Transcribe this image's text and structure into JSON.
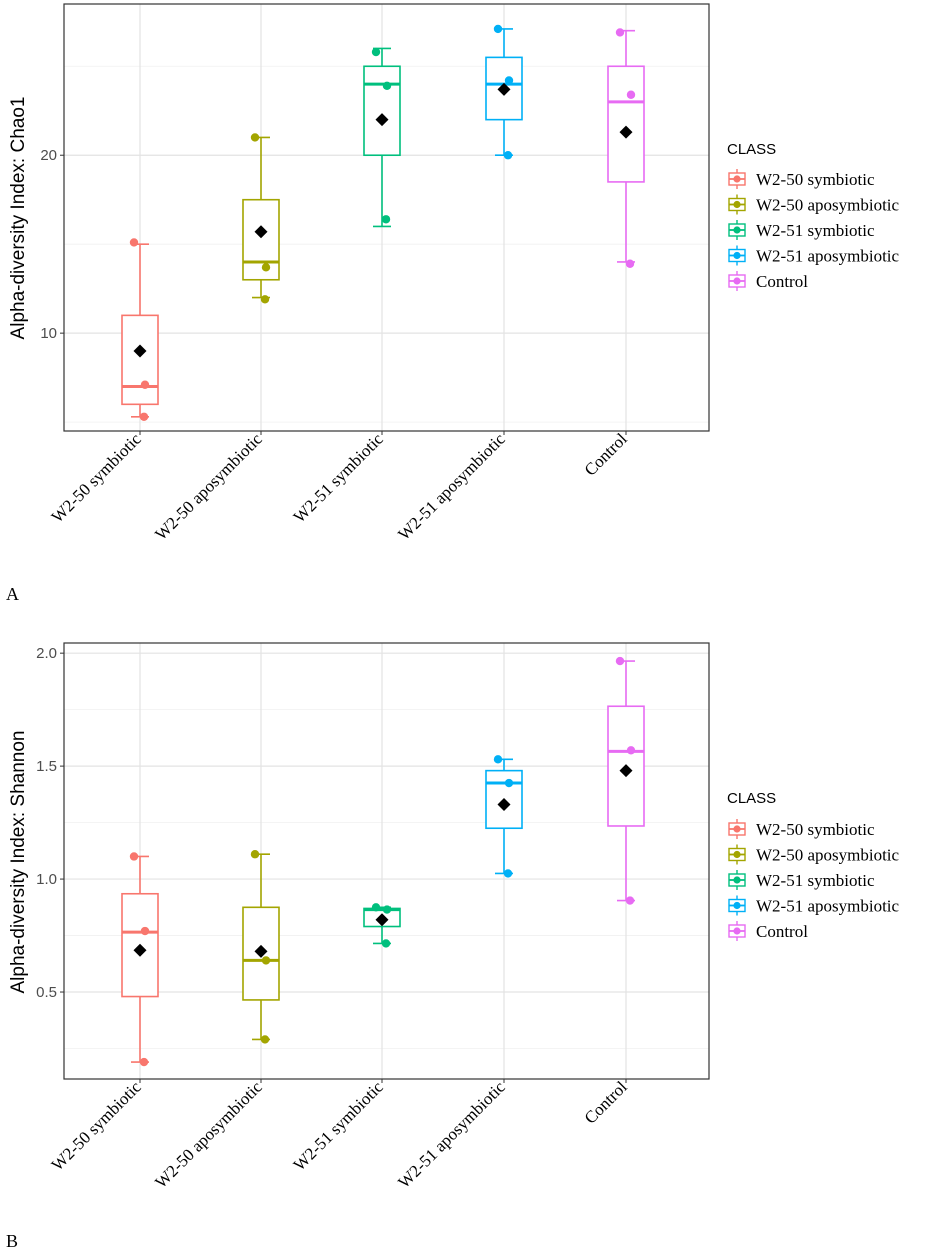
{
  "chart_data": [
    {
      "type": "box",
      "panel_label": "A",
      "ylabel": "Alpha-diversity Index: Chao1",
      "ylim": [
        4.5,
        28.5
      ],
      "yticks": [
        10,
        20
      ],
      "grid": true,
      "categories": [
        "W2-50 symbiotic",
        "W2-50 aposymbiotic",
        "W2-51 symbiotic",
        "W2-51 aposymbiotic",
        "Control"
      ],
      "legend": {
        "title": "CLASS",
        "placement": "right",
        "entries": [
          "W2-50 symbiotic",
          "W2-50 aposymbiotic",
          "W2-51 symbiotic",
          "W2-51 aposymbiotic",
          "Control"
        ]
      },
      "series": [
        {
          "name": "W2-50 symbiotic",
          "color": "#F8766D",
          "whisker_low": 5.3,
          "q1": 6.0,
          "median": 7.0,
          "q3": 11.0,
          "whisker_high": 15.0,
          "mean": 9.0,
          "points": [
            15.1,
            7.1,
            5.3
          ]
        },
        {
          "name": "W2-50 aposymbiotic",
          "color": "#A3A500",
          "whisker_low": 12.0,
          "q1": 13.0,
          "median": 14.0,
          "q3": 17.5,
          "whisker_high": 21.0,
          "mean": 15.7,
          "points": [
            21.0,
            13.7,
            11.9
          ]
        },
        {
          "name": "W2-51 symbiotic",
          "color": "#00BF7D",
          "whisker_low": 16.0,
          "q1": 20.0,
          "median": 24.0,
          "q3": 25.0,
          "whisker_high": 26.0,
          "mean": 22.0,
          "points": [
            25.8,
            23.9,
            16.4
          ]
        },
        {
          "name": "W2-51 aposymbiotic",
          "color": "#00B0F6",
          "whisker_low": 20.0,
          "q1": 22.0,
          "median": 24.0,
          "q3": 25.5,
          "whisker_high": 27.1,
          "mean": 23.7,
          "points": [
            27.1,
            24.2,
            20.0
          ]
        },
        {
          "name": "Control",
          "color": "#E76BF3",
          "whisker_low": 14.0,
          "q1": 18.5,
          "median": 23.0,
          "q3": 25.0,
          "whisker_high": 27.0,
          "mean": 21.3,
          "points": [
            26.9,
            23.4,
            13.9
          ]
        }
      ]
    },
    {
      "type": "box",
      "panel_label": "B",
      "ylabel": "Alpha-diversity Index: Shannon",
      "ylim": [
        0.115,
        2.045
      ],
      "yticks": [
        0.5,
        1.0,
        1.5,
        2.0
      ],
      "ytick_labels": [
        "0.5",
        "1.0",
        "1.5",
        "2.0"
      ],
      "grid": true,
      "categories": [
        "W2-50 symbiotic",
        "W2-50 aposymbiotic",
        "W2-51 symbiotic",
        "W2-51 aposymbiotic",
        "Control"
      ],
      "legend": {
        "title": "CLASS",
        "placement": "right",
        "entries": [
          "W2-50 symbiotic",
          "W2-50 aposymbiotic",
          "W2-51 symbiotic",
          "W2-51 aposymbiotic",
          "Control"
        ]
      },
      "series": [
        {
          "name": "W2-50 symbiotic",
          "color": "#F8766D",
          "whisker_low": 0.19,
          "q1": 0.48,
          "median": 0.765,
          "q3": 0.935,
          "whisker_high": 1.1,
          "mean": 0.685,
          "points": [
            1.1,
            0.77,
            0.19
          ]
        },
        {
          "name": "W2-50 aposymbiotic",
          "color": "#A3A500",
          "whisker_low": 0.29,
          "q1": 0.465,
          "median": 0.64,
          "q3": 0.875,
          "whisker_high": 1.11,
          "mean": 0.68,
          "points": [
            1.11,
            0.64,
            0.29
          ]
        },
        {
          "name": "W2-51 symbiotic",
          "color": "#00BF7D",
          "whisker_low": 0.715,
          "q1": 0.79,
          "median": 0.865,
          "q3": 0.87,
          "whisker_high": 0.875,
          "mean": 0.82,
          "points": [
            0.875,
            0.865,
            0.715
          ]
        },
        {
          "name": "W2-51 aposymbiotic",
          "color": "#00B0F6",
          "whisker_low": 1.025,
          "q1": 1.225,
          "median": 1.425,
          "q3": 1.48,
          "whisker_high": 1.53,
          "mean": 1.33,
          "points": [
            1.53,
            1.425,
            1.025
          ]
        },
        {
          "name": "Control",
          "color": "#E76BF3",
          "whisker_low": 0.905,
          "q1": 1.235,
          "median": 1.565,
          "q3": 1.765,
          "whisker_high": 1.965,
          "mean": 1.48,
          "points": [
            1.965,
            1.57,
            0.905
          ]
        }
      ]
    }
  ]
}
